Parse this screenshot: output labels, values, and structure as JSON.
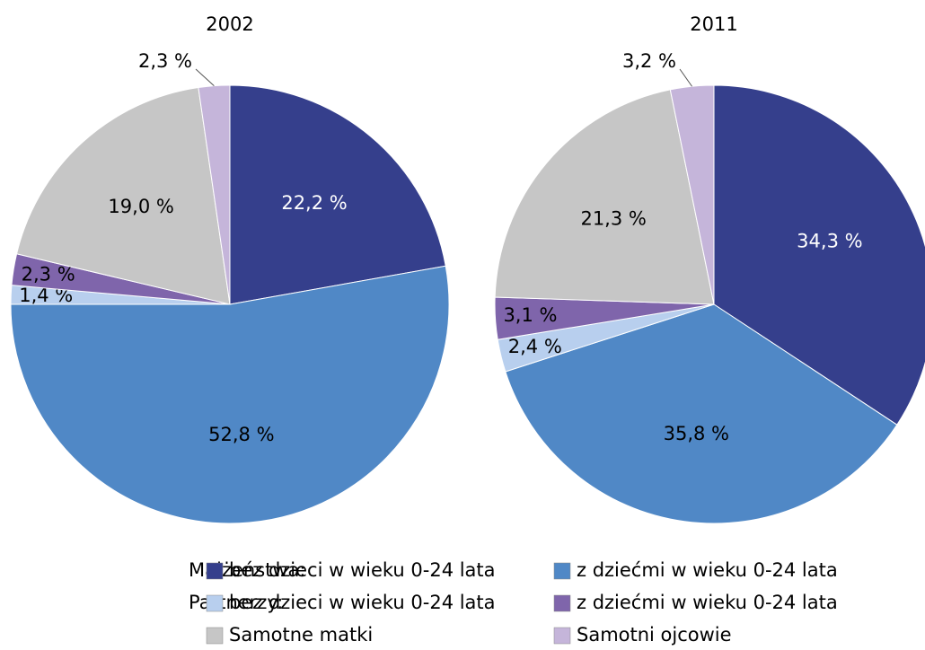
{
  "chart_data": [
    {
      "type": "pie",
      "title": "2002",
      "values": [
        22.2,
        52.8,
        1.4,
        2.3,
        19.0,
        2.3
      ],
      "value_labels": [
        "22,2 %",
        "52,8 %",
        "1,4 %",
        "2,3 %",
        "19,0 %",
        "2,3 %"
      ]
    },
    {
      "type": "pie",
      "title": "2011",
      "values": [
        34.3,
        35.8,
        2.4,
        3.1,
        21.3,
        3.2
      ],
      "value_labels": [
        "34,3 %",
        "35,8 %",
        "2,4 %",
        "3,1 %",
        "21,3 %",
        "3,2 %"
      ]
    }
  ],
  "legend": {
    "groups": [
      "Małżeństwa:",
      "Partnerzy:"
    ],
    "categories": [
      "bez dzieci w wieku 0-24 lata",
      "z dziećmi w wieku 0-24 lata",
      "bez dzieci w wieku 0-24 lata",
      "z dziećmi w wieku 0-24 lata",
      "Samotne matki",
      "Samotni ojcowie"
    ],
    "colors": [
      "#353f8c",
      "#5088c6",
      "#b8cfee",
      "#7f65ab",
      "#c6c6c6",
      "#c5b5da"
    ]
  }
}
